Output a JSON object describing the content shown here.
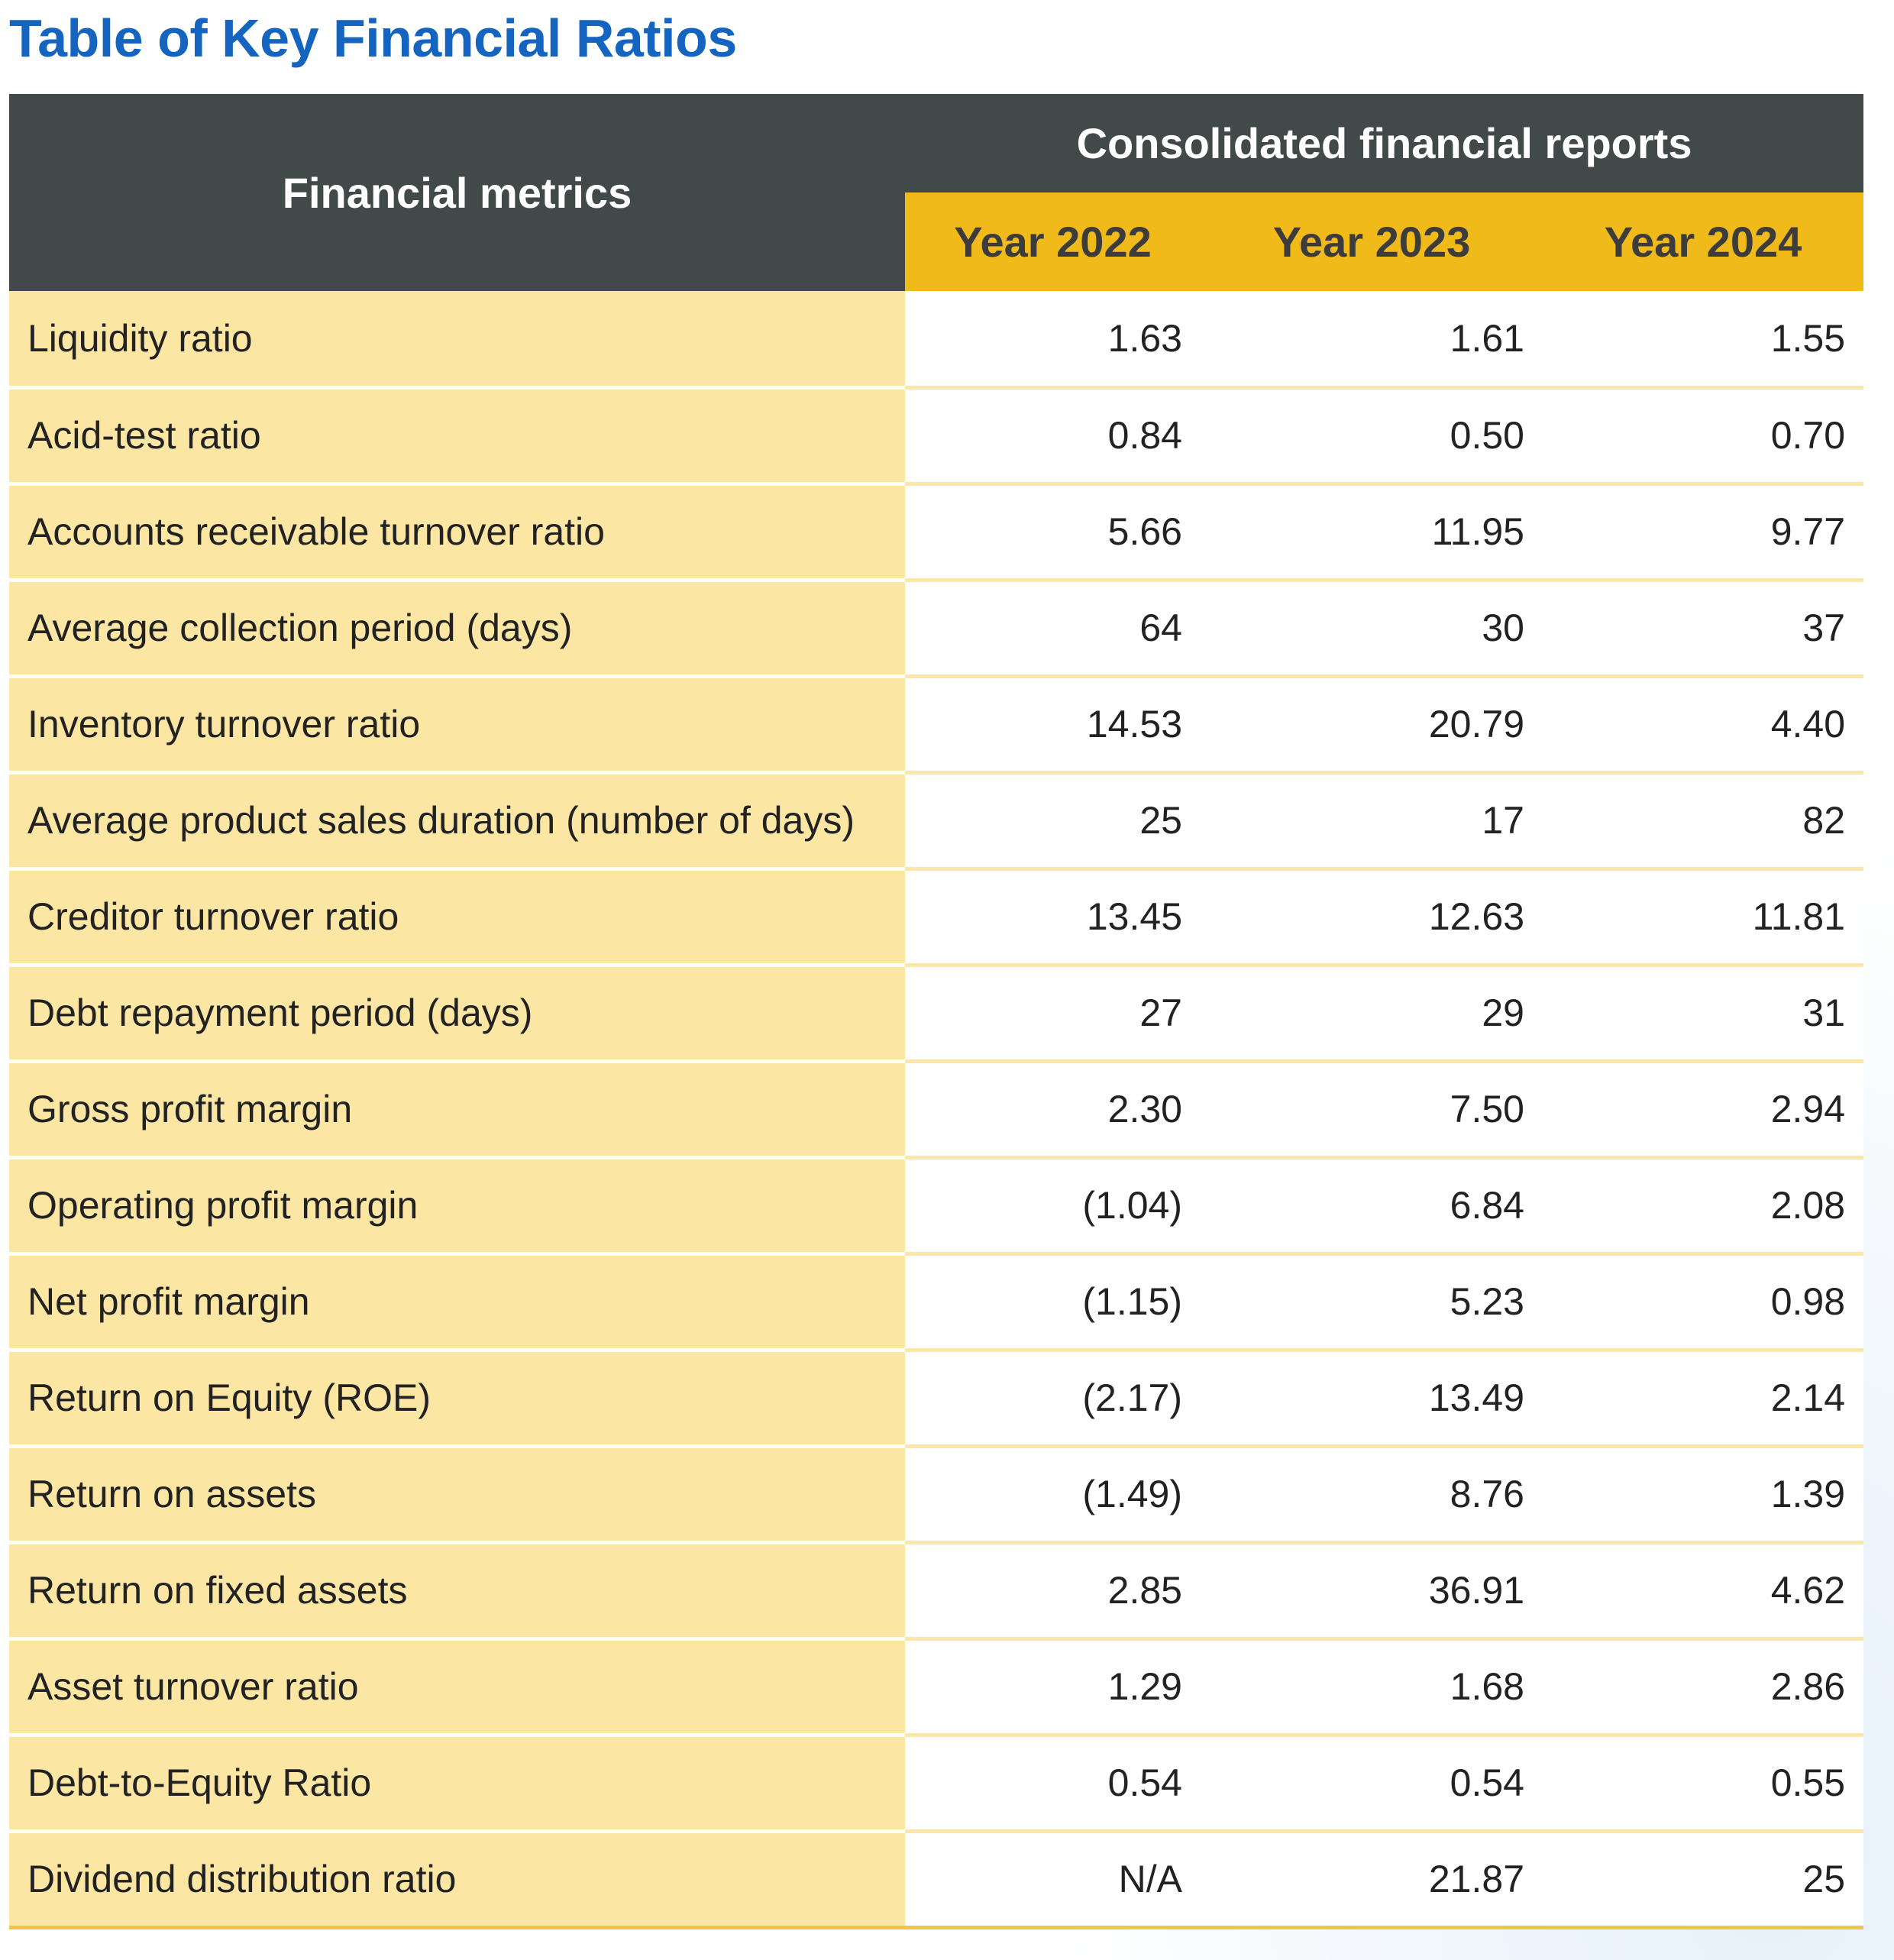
{
  "title": "Table of Key Financial Ratios",
  "header": {
    "metric_label": "Financial metrics",
    "group_label": "Consolidated financial reports",
    "years": [
      "Year 2022",
      "Year 2023",
      "Year 2024"
    ]
  },
  "rows": [
    {
      "metric": "Liquidity ratio",
      "values": [
        "1.63",
        "1.61",
        "1.55"
      ]
    },
    {
      "metric": "Acid-test ratio",
      "values": [
        "0.84",
        "0.50",
        "0.70"
      ]
    },
    {
      "metric": "Accounts receivable turnover ratio",
      "values": [
        "5.66",
        "11.95",
        "9.77"
      ]
    },
    {
      "metric": "Average collection period (days)",
      "values": [
        "64",
        "30",
        "37"
      ]
    },
    {
      "metric": "Inventory turnover ratio",
      "values": [
        "14.53",
        "20.79",
        "4.40"
      ]
    },
    {
      "metric": "Average product sales duration (number of days)",
      "values": [
        "25",
        "17",
        "82"
      ]
    },
    {
      "metric": "Creditor turnover ratio",
      "values": [
        "13.45",
        "12.63",
        "11.81"
      ]
    },
    {
      "metric": "Debt repayment period (days)",
      "values": [
        "27",
        "29",
        "31"
      ]
    },
    {
      "metric": "Gross profit margin",
      "values": [
        "2.30",
        "7.50",
        "2.94"
      ]
    },
    {
      "metric": "Operating profit margin",
      "values": [
        "(1.04)",
        "6.84",
        "2.08"
      ]
    },
    {
      "metric": "Net profit margin",
      "values": [
        "(1.15)",
        "5.23",
        "0.98"
      ]
    },
    {
      "metric": "Return on Equity (ROE)",
      "values": [
        "(2.17)",
        "13.49",
        "2.14"
      ]
    },
    {
      "metric": "Return on assets",
      "values": [
        "(1.49)",
        "8.76",
        "1.39"
      ]
    },
    {
      "metric": "Return on fixed assets",
      "values": [
        "2.85",
        "36.91",
        "4.62"
      ]
    },
    {
      "metric": "Asset turnover ratio",
      "values": [
        "1.29",
        "1.68",
        "2.86"
      ]
    },
    {
      "metric": "Debt-to-Equity Ratio",
      "values": [
        "0.54",
        "0.54",
        "0.55"
      ]
    },
    {
      "metric": "Dividend distribution ratio",
      "values": [
        "N/A",
        "21.87",
        "25"
      ]
    }
  ],
  "colors": {
    "title": "#1565c0",
    "header_dark": "#424949",
    "header_year": "#f0bb1a",
    "metric_cell": "#fce6a4"
  }
}
